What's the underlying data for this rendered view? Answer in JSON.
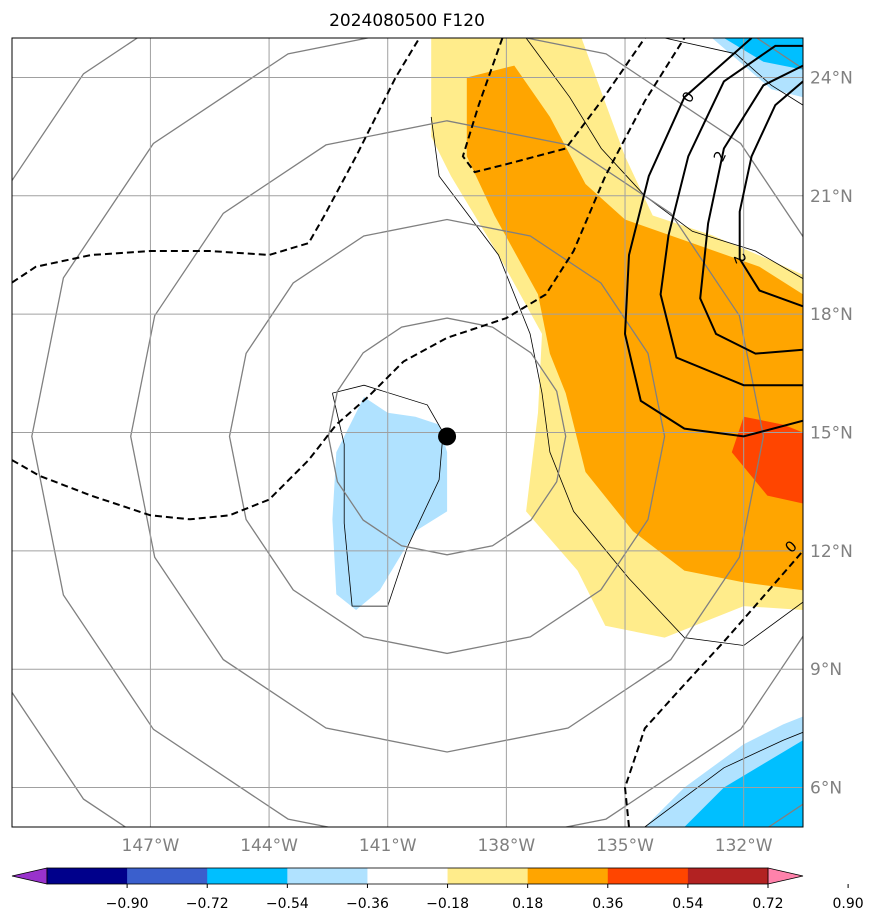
{
  "title": "2024080500 F120",
  "chart_data": {
    "type": "map",
    "title": "2024080500 F120",
    "lon_range": [
      -150.5,
      -130.5
    ],
    "lat_range": [
      5,
      25
    ],
    "lon_ticks": [
      {
        "value": -147,
        "label": "147°W"
      },
      {
        "value": -144,
        "label": "144°W"
      },
      {
        "value": -141,
        "label": "141°W"
      },
      {
        "value": -138,
        "label": "138°W"
      },
      {
        "value": -135,
        "label": "135°W"
      },
      {
        "value": -132,
        "label": "132°W"
      }
    ],
    "lat_ticks": [
      {
        "value": 24,
        "label": "24°N"
      },
      {
        "value": 21,
        "label": "21°N"
      },
      {
        "value": 18,
        "label": "18°N"
      },
      {
        "value": 15,
        "label": "15°N"
      },
      {
        "value": 12,
        "label": "12°N"
      },
      {
        "value": 9,
        "label": "9°N"
      },
      {
        "value": 6,
        "label": "6°N"
      }
    ],
    "grid": true,
    "center_marker": {
      "lon": -139.5,
      "lat": 14.9
    },
    "range_ring_radii_deg": [
      3,
      5.5,
      8,
      10.5,
      13
    ],
    "colorbar": {
      "levels": [
        -0.9,
        -0.72,
        -0.54,
        -0.36,
        -0.18,
        0.18,
        0.36,
        0.54,
        0.72,
        0.9
      ],
      "labels": [
        "−0.90",
        "−0.72",
        "−0.54",
        "−0.36",
        "−0.18",
        "0.18",
        "0.36",
        "0.54",
        "0.72",
        "0.90"
      ],
      "colors": [
        "#9932cc",
        "#00008b",
        "#3a5fcd",
        "#00bfff",
        "#b0e2ff",
        "#ffffff",
        "#ffec8b",
        "#ffa500",
        "#ff4500",
        "#b22222",
        "#ff82ab"
      ],
      "extend": "both"
    },
    "fill_regions": [
      {
        "level": "0.18-0.36",
        "color": "#ffec8b",
        "polygon": [
          [
            -139.9,
            25
          ],
          [
            -136.1,
            25
          ],
          [
            -135,
            22
          ],
          [
            -134.3,
            20.5
          ],
          [
            -132.8,
            20
          ],
          [
            -131.4,
            19.4
          ],
          [
            -130.5,
            19
          ],
          [
            -130.5,
            10.5
          ],
          [
            -132,
            10.6
          ],
          [
            -134,
            9.8
          ],
          [
            -135.5,
            10.1
          ],
          [
            -136.2,
            11.5
          ],
          [
            -137.5,
            13
          ],
          [
            -137.2,
            15.5
          ],
          [
            -137.1,
            17.5
          ],
          [
            -138.2,
            19.5
          ],
          [
            -139.4,
            21.5
          ],
          [
            -139.9,
            22.5
          ]
        ]
      },
      {
        "level": "0.36-0.54",
        "color": "#ffa500",
        "polygon": [
          [
            -139,
            24
          ],
          [
            -137.8,
            24.3
          ],
          [
            -136.9,
            23
          ],
          [
            -136,
            21.3
          ],
          [
            -135,
            20.4
          ],
          [
            -133.3,
            19.8
          ],
          [
            -131.6,
            19.2
          ],
          [
            -130.5,
            18.5
          ],
          [
            -130.5,
            11
          ],
          [
            -132,
            11.2
          ],
          [
            -133.5,
            11.5
          ],
          [
            -134.8,
            12.5
          ],
          [
            -136,
            14
          ],
          [
            -136.5,
            16
          ],
          [
            -136.9,
            17
          ],
          [
            -137.2,
            18.5
          ],
          [
            -138.3,
            20.5
          ],
          [
            -139,
            22
          ]
        ]
      },
      {
        "level": "0.54-0.72",
        "color": "#ff4500",
        "polygon": [
          [
            -132,
            15.4
          ],
          [
            -131,
            15.2
          ],
          [
            -130.5,
            15
          ],
          [
            -130.5,
            13.2
          ],
          [
            -131.4,
            13.4
          ],
          [
            -132.3,
            14.5
          ]
        ]
      },
      {
        "level": "-0.36--0.18",
        "color": "#b0e2ff",
        "polygon": [
          [
            -141.6,
            15.9
          ],
          [
            -141,
            15.5
          ],
          [
            -140.3,
            15.4
          ],
          [
            -139.7,
            15.2
          ],
          [
            -139.5,
            14.5
          ],
          [
            -139.5,
            13
          ],
          [
            -140.3,
            12.5
          ],
          [
            -141.2,
            11
          ],
          [
            -141.8,
            10.5
          ],
          [
            -142.3,
            10.9
          ],
          [
            -142.4,
            12.8
          ],
          [
            -142.3,
            14.5
          ]
        ]
      },
      {
        "level": "-0.36--0.18",
        "color": "#b0e2ff",
        "polygon": [
          [
            -132.8,
            25
          ],
          [
            -130.5,
            25
          ],
          [
            -130.5,
            23.5
          ],
          [
            -131.3,
            23.7
          ],
          [
            -132.1,
            24.4
          ]
        ]
      },
      {
        "level": "-0.54--0.36",
        "color": "#00bfff",
        "polygon": [
          [
            -132.5,
            25
          ],
          [
            -130.5,
            25
          ],
          [
            -130.5,
            24.2
          ],
          [
            -131.5,
            24.4
          ]
        ]
      },
      {
        "level": "-0.36--0.18",
        "color": "#b0e2ff",
        "polygon": [
          [
            -134.5,
            5
          ],
          [
            -133.5,
            6
          ],
          [
            -132,
            7.1
          ],
          [
            -131,
            7.6
          ],
          [
            -130.5,
            7.8
          ],
          [
            -130.5,
            5
          ]
        ]
      },
      {
        "level": "-0.54--0.36",
        "color": "#00bfff",
        "polygon": [
          [
            -133.5,
            5
          ],
          [
            -132.5,
            6
          ],
          [
            -131.5,
            6.6
          ],
          [
            -130.5,
            7.2
          ],
          [
            -130.5,
            5
          ]
        ]
      }
    ],
    "thin_outlines": [
      [
        [
          -139.5,
          25
        ],
        [
          -137.5,
          25
        ],
        [
          -136.4,
          23.5
        ],
        [
          -135.6,
          22.2
        ],
        [
          -134.5,
          21
        ],
        [
          -133.3,
          20.1
        ],
        [
          -131.7,
          19.6
        ],
        [
          -130.5,
          18.9
        ]
      ],
      [
        [
          -139.9,
          23
        ],
        [
          -139.7,
          21.5
        ],
        [
          -138.2,
          19.5
        ],
        [
          -137.4,
          17.5
        ],
        [
          -137.1,
          16
        ],
        [
          -136.9,
          14.5
        ],
        [
          -136.3,
          13
        ],
        [
          -134.9,
          11.3
        ],
        [
          -133.5,
          9.8
        ],
        [
          -132,
          9.6
        ],
        [
          -130.5,
          10.7
        ]
      ],
      [
        [
          -142.4,
          16
        ],
        [
          -141.6,
          16.2
        ],
        [
          -140,
          15.7
        ],
        [
          -139.6,
          15
        ],
        [
          -139.7,
          13.8
        ],
        [
          -140.5,
          12.1
        ],
        [
          -141,
          10.6
        ],
        [
          -141.9,
          10.6
        ],
        [
          -142.1,
          12.7
        ],
        [
          -142.1,
          14.7
        ],
        [
          -142.4,
          16
        ]
      ],
      [
        [
          -134,
          25
        ],
        [
          -132.2,
          24.6
        ],
        [
          -131.3,
          23.8
        ],
        [
          -130.5,
          23.3
        ]
      ],
      [
        [
          -134.5,
          5
        ],
        [
          -132.5,
          6.5
        ],
        [
          -131,
          7.2
        ],
        [
          -130.5,
          7.4
        ]
      ]
    ],
    "solid_contours": [
      {
        "label": "0",
        "points": [
          [
            -131.8,
            25
          ],
          [
            -133.5,
            23.5
          ],
          [
            -134.4,
            21.5
          ],
          [
            -134.9,
            19.5
          ],
          [
            -135,
            17.5
          ],
          [
            -134.6,
            15.8
          ],
          [
            -133.5,
            15.1
          ],
          [
            -132,
            14.9
          ],
          [
            -130.5,
            15.3
          ]
        ]
      },
      {
        "label": "2",
        "points": [
          [
            -130.5,
            24.8
          ],
          [
            -131.2,
            24.8
          ],
          [
            -132.5,
            23.9
          ],
          [
            -133.4,
            22
          ],
          [
            -133.9,
            20
          ],
          [
            -134.1,
            18.5
          ],
          [
            -133.7,
            16.9
          ],
          [
            -132,
            16.2
          ],
          [
            -130.5,
            16.2
          ]
        ]
      },
      {
        "label": "",
        "points": [
          [
            -130.5,
            24.3
          ],
          [
            -131.5,
            23.8
          ],
          [
            -132.5,
            22.2
          ],
          [
            -132.9,
            20.3
          ],
          [
            -133.1,
            18.4
          ],
          [
            -132.7,
            17.5
          ],
          [
            -131.7,
            17
          ],
          [
            -130.5,
            17.1
          ]
        ]
      },
      {
        "label": "",
        "points": [
          [
            -130.5,
            23.9
          ],
          [
            -131.2,
            23.3
          ],
          [
            -131.8,
            22
          ],
          [
            -132.1,
            20.6
          ],
          [
            -132.1,
            19.4
          ],
          [
            -131.6,
            18.6
          ],
          [
            -130.5,
            18.2
          ]
        ]
      }
    ],
    "dashed_contours": [
      {
        "label": "",
        "points": [
          [
            -150.5,
            18.8
          ],
          [
            -149.9,
            19.2
          ],
          [
            -148.5,
            19.5
          ],
          [
            -147,
            19.6
          ],
          [
            -145.5,
            19.6
          ],
          [
            -144,
            19.5
          ],
          [
            -143,
            19.8
          ],
          [
            -142.6,
            20.5
          ],
          [
            -141.8,
            22
          ],
          [
            -140.8,
            24
          ],
          [
            -140.2,
            25
          ]
        ]
      },
      {
        "label": "",
        "points": [
          [
            -150.5,
            14.3
          ],
          [
            -149.8,
            13.9
          ],
          [
            -148.5,
            13.4
          ],
          [
            -147,
            12.9
          ],
          [
            -146,
            12.8
          ],
          [
            -145,
            12.9
          ],
          [
            -144,
            13.3
          ],
          [
            -143,
            14.3
          ],
          [
            -142.3,
            15.2
          ],
          [
            -141.5,
            15.9
          ],
          [
            -140.6,
            16.8
          ],
          [
            -139.5,
            17.4
          ],
          [
            -138,
            17.9
          ],
          [
            -137,
            18.5
          ],
          [
            -136.3,
            19.6
          ],
          [
            -135.5,
            21.5
          ],
          [
            -134.5,
            23.4
          ],
          [
            -133.5,
            25
          ]
        ]
      },
      {
        "label": "",
        "points": [
          [
            -138.1,
            25
          ],
          [
            -138.7,
            23.3
          ],
          [
            -139.1,
            22
          ],
          [
            -138.8,
            21.6
          ],
          [
            -138,
            21.8
          ],
          [
            -136.5,
            22.2
          ],
          [
            -135.6,
            23.4
          ],
          [
            -134.5,
            25
          ]
        ]
      },
      {
        "label": "0",
        "points": [
          [
            -134.9,
            5
          ],
          [
            -135,
            6
          ],
          [
            -134.5,
            7.5
          ],
          [
            -133.6,
            8.5
          ],
          [
            -132.5,
            9.7
          ],
          [
            -131.8,
            10.5
          ],
          [
            -130.5,
            12
          ]
        ]
      }
    ],
    "contour_labels": [
      {
        "text": "0",
        "lon": -133.4,
        "lat": 23.5,
        "rotate": -55
      },
      {
        "text": "2",
        "lon": -132.6,
        "lat": 22,
        "rotate": -65
      },
      {
        "text": "2",
        "lon": -132.1,
        "lat": 19.4,
        "rotate": 70
      },
      {
        "text": "0",
        "lon": -130.8,
        "lat": 12.1,
        "rotate": -45
      }
    ]
  }
}
